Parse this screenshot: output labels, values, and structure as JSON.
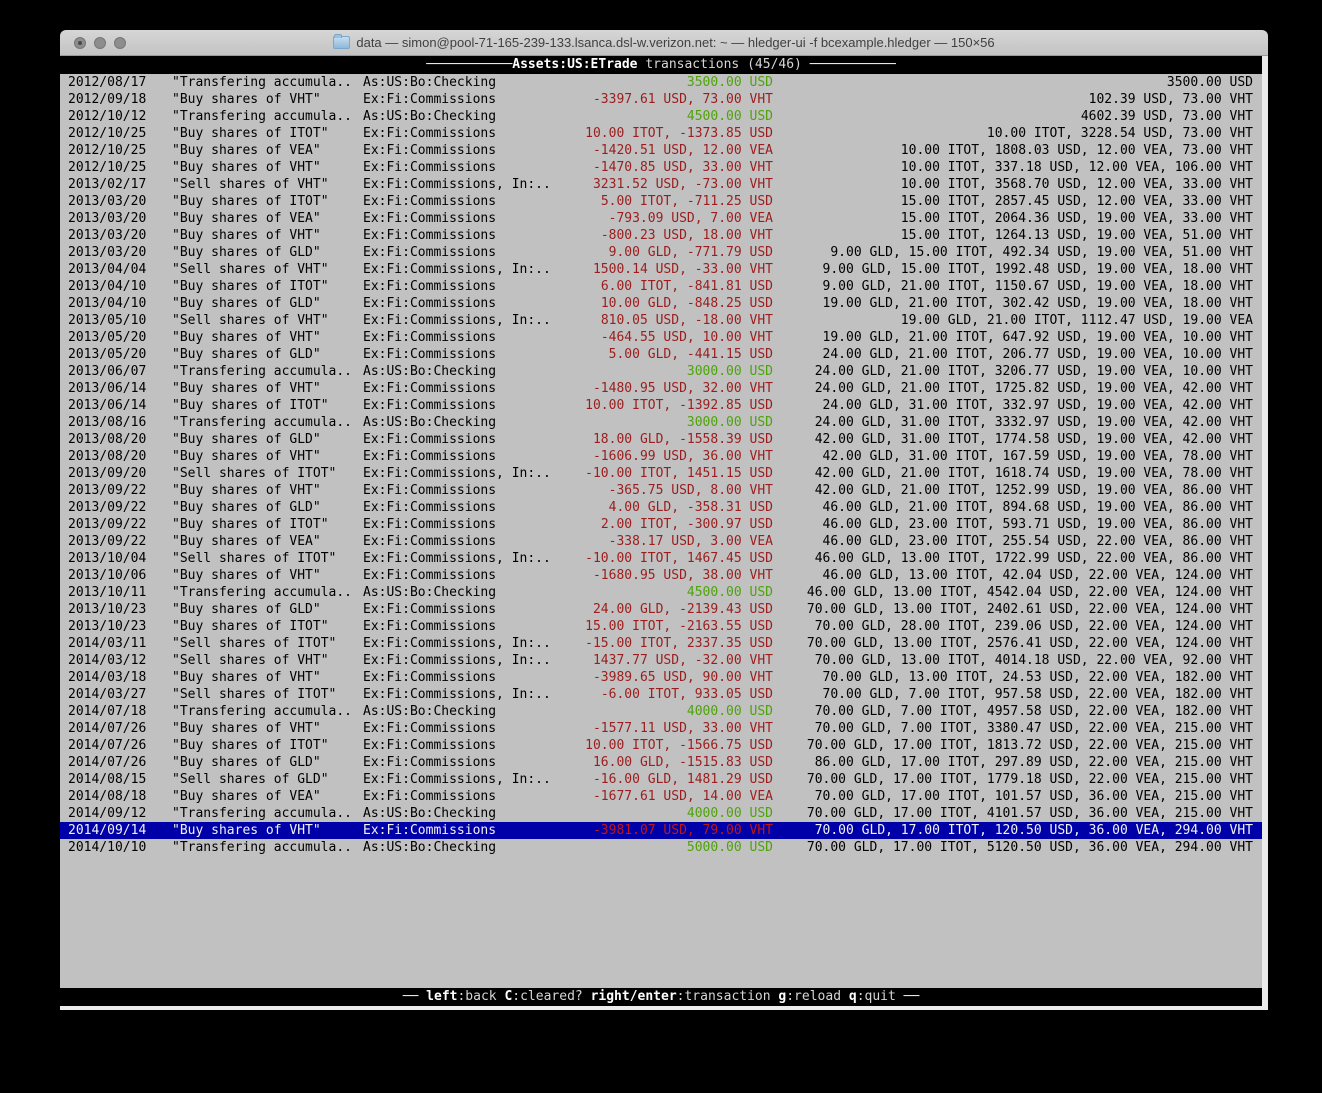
{
  "window": {
    "title": "data — simon@pool-71-165-239-133.lsanca.dsl-w.verizon.net: ~ — hledger-ui -f bcexample.hledger — 150×56",
    "buttons": {
      "close": "close",
      "minimize": "minimize",
      "zoom": "zoom"
    }
  },
  "colors": {
    "amount_positive_green": "#4fa30a",
    "amount_negative_red": "#9b1d1d",
    "selected_row_blue": "#0000a8",
    "selected_amount_red": "#c41414",
    "terminal_background": "#c1c1c1",
    "bar_background": "#000000"
  },
  "tui": {
    "header": {
      "dash_left": "───────────",
      "account": "Assets:US:ETrade",
      "label": " transactions (45/46) ",
      "dash_right": "───────────"
    },
    "footer": {
      "dash_left": "── ",
      "dash_right": " ──",
      "items": [
        {
          "key": "left",
          "rest": ":back"
        },
        {
          "key": "C",
          "rest": ":cleared?"
        },
        {
          "key": "right/enter",
          "rest": ":transaction"
        },
        {
          "key": "g",
          "rest": ":reload"
        },
        {
          "key": "q",
          "rest": ":quit"
        }
      ]
    },
    "register": {
      "selected_index": 44,
      "rows": [
        {
          "date": "2012/08/17",
          "desc": "\"Transfering accumula..",
          "acct": "As:US:Bo:Checking",
          "amt": "3500.00 USD",
          "amt_color": "green",
          "bal": "3500.00 USD"
        },
        {
          "date": "2012/09/18",
          "desc": "\"Buy shares of VHT\"",
          "acct": "Ex:Fi:Commissions",
          "amt": "-3397.61 USD, 73.00 VHT",
          "amt_color": "red",
          "bal": "102.39 USD, 73.00 VHT"
        },
        {
          "date": "2012/10/12",
          "desc": "\"Transfering accumula..",
          "acct": "As:US:Bo:Checking",
          "amt": "4500.00 USD",
          "amt_color": "green",
          "bal": "4602.39 USD, 73.00 VHT"
        },
        {
          "date": "2012/10/25",
          "desc": "\"Buy shares of ITOT\"",
          "acct": "Ex:Fi:Commissions",
          "amt": "10.00 ITOT, -1373.85 USD",
          "amt_color": "red",
          "bal": "10.00 ITOT, 3228.54 USD, 73.00 VHT"
        },
        {
          "date": "2012/10/25",
          "desc": "\"Buy shares of VEA\"",
          "acct": "Ex:Fi:Commissions",
          "amt": "-1420.51 USD, 12.00 VEA",
          "amt_color": "red",
          "bal": "10.00 ITOT, 1808.03 USD, 12.00 VEA, 73.00 VHT"
        },
        {
          "date": "2012/10/25",
          "desc": "\"Buy shares of VHT\"",
          "acct": "Ex:Fi:Commissions",
          "amt": "-1470.85 USD, 33.00 VHT",
          "amt_color": "red",
          "bal": "10.00 ITOT, 337.18 USD, 12.00 VEA, 106.00 VHT"
        },
        {
          "date": "2013/02/17",
          "desc": "\"Sell shares of VHT\"",
          "acct": "Ex:Fi:Commissions, In:..",
          "amt": "3231.52 USD, -73.00 VHT",
          "amt_color": "red",
          "bal": "10.00 ITOT, 3568.70 USD, 12.00 VEA, 33.00 VHT"
        },
        {
          "date": "2013/03/20",
          "desc": "\"Buy shares of ITOT\"",
          "acct": "Ex:Fi:Commissions",
          "amt": "5.00 ITOT, -711.25 USD",
          "amt_color": "red",
          "bal": "15.00 ITOT, 2857.45 USD, 12.00 VEA, 33.00 VHT"
        },
        {
          "date": "2013/03/20",
          "desc": "\"Buy shares of VEA\"",
          "acct": "Ex:Fi:Commissions",
          "amt": "-793.09 USD, 7.00 VEA",
          "amt_color": "red",
          "bal": "15.00 ITOT, 2064.36 USD, 19.00 VEA, 33.00 VHT"
        },
        {
          "date": "2013/03/20",
          "desc": "\"Buy shares of VHT\"",
          "acct": "Ex:Fi:Commissions",
          "amt": "-800.23 USD, 18.00 VHT",
          "amt_color": "red",
          "bal": "15.00 ITOT, 1264.13 USD, 19.00 VEA, 51.00 VHT"
        },
        {
          "date": "2013/03/20",
          "desc": "\"Buy shares of GLD\"",
          "acct": "Ex:Fi:Commissions",
          "amt": "9.00 GLD, -771.79 USD",
          "amt_color": "red",
          "bal": "9.00 GLD, 15.00 ITOT, 492.34 USD, 19.00 VEA, 51.00 VHT"
        },
        {
          "date": "2013/04/04",
          "desc": "\"Sell shares of VHT\"",
          "acct": "Ex:Fi:Commissions, In:..",
          "amt": "1500.14 USD, -33.00 VHT",
          "amt_color": "red",
          "bal": "9.00 GLD, 15.00 ITOT, 1992.48 USD, 19.00 VEA, 18.00 VHT"
        },
        {
          "date": "2013/04/10",
          "desc": "\"Buy shares of ITOT\"",
          "acct": "Ex:Fi:Commissions",
          "amt": "6.00 ITOT, -841.81 USD",
          "amt_color": "red",
          "bal": "9.00 GLD, 21.00 ITOT, 1150.67 USD, 19.00 VEA, 18.00 VHT"
        },
        {
          "date": "2013/04/10",
          "desc": "\"Buy shares of GLD\"",
          "acct": "Ex:Fi:Commissions",
          "amt": "10.00 GLD, -848.25 USD",
          "amt_color": "red",
          "bal": "19.00 GLD, 21.00 ITOT, 302.42 USD, 19.00 VEA, 18.00 VHT"
        },
        {
          "date": "2013/05/10",
          "desc": "\"Sell shares of VHT\"",
          "acct": "Ex:Fi:Commissions, In:..",
          "amt": "810.05 USD, -18.00 VHT",
          "amt_color": "red",
          "bal": "19.00 GLD, 21.00 ITOT, 1112.47 USD, 19.00 VEA"
        },
        {
          "date": "2013/05/20",
          "desc": "\"Buy shares of VHT\"",
          "acct": "Ex:Fi:Commissions",
          "amt": "-464.55 USD, 10.00 VHT",
          "amt_color": "red",
          "bal": "19.00 GLD, 21.00 ITOT, 647.92 USD, 19.00 VEA, 10.00 VHT"
        },
        {
          "date": "2013/05/20",
          "desc": "\"Buy shares of GLD\"",
          "acct": "Ex:Fi:Commissions",
          "amt": "5.00 GLD, -441.15 USD",
          "amt_color": "red",
          "bal": "24.00 GLD, 21.00 ITOT, 206.77 USD, 19.00 VEA, 10.00 VHT"
        },
        {
          "date": "2013/06/07",
          "desc": "\"Transfering accumula..",
          "acct": "As:US:Bo:Checking",
          "amt": "3000.00 USD",
          "amt_color": "green",
          "bal": "24.00 GLD, 21.00 ITOT, 3206.77 USD, 19.00 VEA, 10.00 VHT"
        },
        {
          "date": "2013/06/14",
          "desc": "\"Buy shares of VHT\"",
          "acct": "Ex:Fi:Commissions",
          "amt": "-1480.95 USD, 32.00 VHT",
          "amt_color": "red",
          "bal": "24.00 GLD, 21.00 ITOT, 1725.82 USD, 19.00 VEA, 42.00 VHT"
        },
        {
          "date": "2013/06/14",
          "desc": "\"Buy shares of ITOT\"",
          "acct": "Ex:Fi:Commissions",
          "amt": "10.00 ITOT, -1392.85 USD",
          "amt_color": "red",
          "bal": "24.00 GLD, 31.00 ITOT, 332.97 USD, 19.00 VEA, 42.00 VHT"
        },
        {
          "date": "2013/08/16",
          "desc": "\"Transfering accumula..",
          "acct": "As:US:Bo:Checking",
          "amt": "3000.00 USD",
          "amt_color": "green",
          "bal": "24.00 GLD, 31.00 ITOT, 3332.97 USD, 19.00 VEA, 42.00 VHT"
        },
        {
          "date": "2013/08/20",
          "desc": "\"Buy shares of GLD\"",
          "acct": "Ex:Fi:Commissions",
          "amt": "18.00 GLD, -1558.39 USD",
          "amt_color": "red",
          "bal": "42.00 GLD, 31.00 ITOT, 1774.58 USD, 19.00 VEA, 42.00 VHT"
        },
        {
          "date": "2013/08/20",
          "desc": "\"Buy shares of VHT\"",
          "acct": "Ex:Fi:Commissions",
          "amt": "-1606.99 USD, 36.00 VHT",
          "amt_color": "red",
          "bal": "42.00 GLD, 31.00 ITOT, 167.59 USD, 19.00 VEA, 78.00 VHT"
        },
        {
          "date": "2013/09/20",
          "desc": "\"Sell shares of ITOT\"",
          "acct": "Ex:Fi:Commissions, In:..",
          "amt": "-10.00 ITOT, 1451.15 USD",
          "amt_color": "red",
          "bal": "42.00 GLD, 21.00 ITOT, 1618.74 USD, 19.00 VEA, 78.00 VHT"
        },
        {
          "date": "2013/09/22",
          "desc": "\"Buy shares of VHT\"",
          "acct": "Ex:Fi:Commissions",
          "amt": "-365.75 USD, 8.00 VHT",
          "amt_color": "red",
          "bal": "42.00 GLD, 21.00 ITOT, 1252.99 USD, 19.00 VEA, 86.00 VHT"
        },
        {
          "date": "2013/09/22",
          "desc": "\"Buy shares of GLD\"",
          "acct": "Ex:Fi:Commissions",
          "amt": "4.00 GLD, -358.31 USD",
          "amt_color": "red",
          "bal": "46.00 GLD, 21.00 ITOT, 894.68 USD, 19.00 VEA, 86.00 VHT"
        },
        {
          "date": "2013/09/22",
          "desc": "\"Buy shares of ITOT\"",
          "acct": "Ex:Fi:Commissions",
          "amt": "2.00 ITOT, -300.97 USD",
          "amt_color": "red",
          "bal": "46.00 GLD, 23.00 ITOT, 593.71 USD, 19.00 VEA, 86.00 VHT"
        },
        {
          "date": "2013/09/22",
          "desc": "\"Buy shares of VEA\"",
          "acct": "Ex:Fi:Commissions",
          "amt": "-338.17 USD, 3.00 VEA",
          "amt_color": "red",
          "bal": "46.00 GLD, 23.00 ITOT, 255.54 USD, 22.00 VEA, 86.00 VHT"
        },
        {
          "date": "2013/10/04",
          "desc": "\"Sell shares of ITOT\"",
          "acct": "Ex:Fi:Commissions, In:..",
          "amt": "-10.00 ITOT, 1467.45 USD",
          "amt_color": "red",
          "bal": "46.00 GLD, 13.00 ITOT, 1722.99 USD, 22.00 VEA, 86.00 VHT"
        },
        {
          "date": "2013/10/06",
          "desc": "\"Buy shares of VHT\"",
          "acct": "Ex:Fi:Commissions",
          "amt": "-1680.95 USD, 38.00 VHT",
          "amt_color": "red",
          "bal": "46.00 GLD, 13.00 ITOT, 42.04 USD, 22.00 VEA, 124.00 VHT"
        },
        {
          "date": "2013/10/11",
          "desc": "\"Transfering accumula..",
          "acct": "As:US:Bo:Checking",
          "amt": "4500.00 USD",
          "amt_color": "green",
          "bal": "46.00 GLD, 13.00 ITOT, 4542.04 USD, 22.00 VEA, 124.00 VHT"
        },
        {
          "date": "2013/10/23",
          "desc": "\"Buy shares of GLD\"",
          "acct": "Ex:Fi:Commissions",
          "amt": "24.00 GLD, -2139.43 USD",
          "amt_color": "red",
          "bal": "70.00 GLD, 13.00 ITOT, 2402.61 USD, 22.00 VEA, 124.00 VHT"
        },
        {
          "date": "2013/10/23",
          "desc": "\"Buy shares of ITOT\"",
          "acct": "Ex:Fi:Commissions",
          "amt": "15.00 ITOT, -2163.55 USD",
          "amt_color": "red",
          "bal": "70.00 GLD, 28.00 ITOT, 239.06 USD, 22.00 VEA, 124.00 VHT"
        },
        {
          "date": "2014/03/11",
          "desc": "\"Sell shares of ITOT\"",
          "acct": "Ex:Fi:Commissions, In:..",
          "amt": "-15.00 ITOT, 2337.35 USD",
          "amt_color": "red",
          "bal": "70.00 GLD, 13.00 ITOT, 2576.41 USD, 22.00 VEA, 124.00 VHT"
        },
        {
          "date": "2014/03/12",
          "desc": "\"Sell shares of VHT\"",
          "acct": "Ex:Fi:Commissions, In:..",
          "amt": "1437.77 USD, -32.00 VHT",
          "amt_color": "red",
          "bal": "70.00 GLD, 13.00 ITOT, 4014.18 USD, 22.00 VEA, 92.00 VHT"
        },
        {
          "date": "2014/03/18",
          "desc": "\"Buy shares of VHT\"",
          "acct": "Ex:Fi:Commissions",
          "amt": "-3989.65 USD, 90.00 VHT",
          "amt_color": "red",
          "bal": "70.00 GLD, 13.00 ITOT, 24.53 USD, 22.00 VEA, 182.00 VHT"
        },
        {
          "date": "2014/03/27",
          "desc": "\"Sell shares of ITOT\"",
          "acct": "Ex:Fi:Commissions, In:..",
          "amt": "-6.00 ITOT, 933.05 USD",
          "amt_color": "red",
          "bal": "70.00 GLD, 7.00 ITOT, 957.58 USD, 22.00 VEA, 182.00 VHT"
        },
        {
          "date": "2014/07/18",
          "desc": "\"Transfering accumula..",
          "acct": "As:US:Bo:Checking",
          "amt": "4000.00 USD",
          "amt_color": "green",
          "bal": "70.00 GLD, 7.00 ITOT, 4957.58 USD, 22.00 VEA, 182.00 VHT"
        },
        {
          "date": "2014/07/26",
          "desc": "\"Buy shares of VHT\"",
          "acct": "Ex:Fi:Commissions",
          "amt": "-1577.11 USD, 33.00 VHT",
          "amt_color": "red",
          "bal": "70.00 GLD, 7.00 ITOT, 3380.47 USD, 22.00 VEA, 215.00 VHT"
        },
        {
          "date": "2014/07/26",
          "desc": "\"Buy shares of ITOT\"",
          "acct": "Ex:Fi:Commissions",
          "amt": "10.00 ITOT, -1566.75 USD",
          "amt_color": "red",
          "bal": "70.00 GLD, 17.00 ITOT, 1813.72 USD, 22.00 VEA, 215.00 VHT"
        },
        {
          "date": "2014/07/26",
          "desc": "\"Buy shares of GLD\"",
          "acct": "Ex:Fi:Commissions",
          "amt": "16.00 GLD, -1515.83 USD",
          "amt_color": "red",
          "bal": "86.00 GLD, 17.00 ITOT, 297.89 USD, 22.00 VEA, 215.00 VHT"
        },
        {
          "date": "2014/08/15",
          "desc": "\"Sell shares of GLD\"",
          "acct": "Ex:Fi:Commissions, In:..",
          "amt": "-16.00 GLD, 1481.29 USD",
          "amt_color": "red",
          "bal": "70.00 GLD, 17.00 ITOT, 1779.18 USD, 22.00 VEA, 215.00 VHT"
        },
        {
          "date": "2014/08/18",
          "desc": "\"Buy shares of VEA\"",
          "acct": "Ex:Fi:Commissions",
          "amt": "-1677.61 USD, 14.00 VEA",
          "amt_color": "red",
          "bal": "70.00 GLD, 17.00 ITOT, 101.57 USD, 36.00 VEA, 215.00 VHT"
        },
        {
          "date": "2014/09/12",
          "desc": "\"Transfering accumula..",
          "acct": "As:US:Bo:Checking",
          "amt": "4000.00 USD",
          "amt_color": "green",
          "bal": "70.00 GLD, 17.00 ITOT, 4101.57 USD, 36.00 VEA, 215.00 VHT"
        },
        {
          "date": "2014/09/14",
          "desc": "\"Buy shares of VHT\"",
          "acct": "Ex:Fi:Commissions",
          "amt": "-3981.07 USD, 79.00 VHT",
          "amt_color": "red",
          "bal": "70.00 GLD, 17.00 ITOT, 120.50 USD, 36.00 VEA, 294.00 VHT"
        },
        {
          "date": "2014/10/10",
          "desc": "\"Transfering accumula..",
          "acct": "As:US:Bo:Checking",
          "amt": "5000.00 USD",
          "amt_color": "green",
          "bal": "70.00 GLD, 17.00 ITOT, 5120.50 USD, 36.00 VEA, 294.00 VHT"
        }
      ]
    }
  }
}
